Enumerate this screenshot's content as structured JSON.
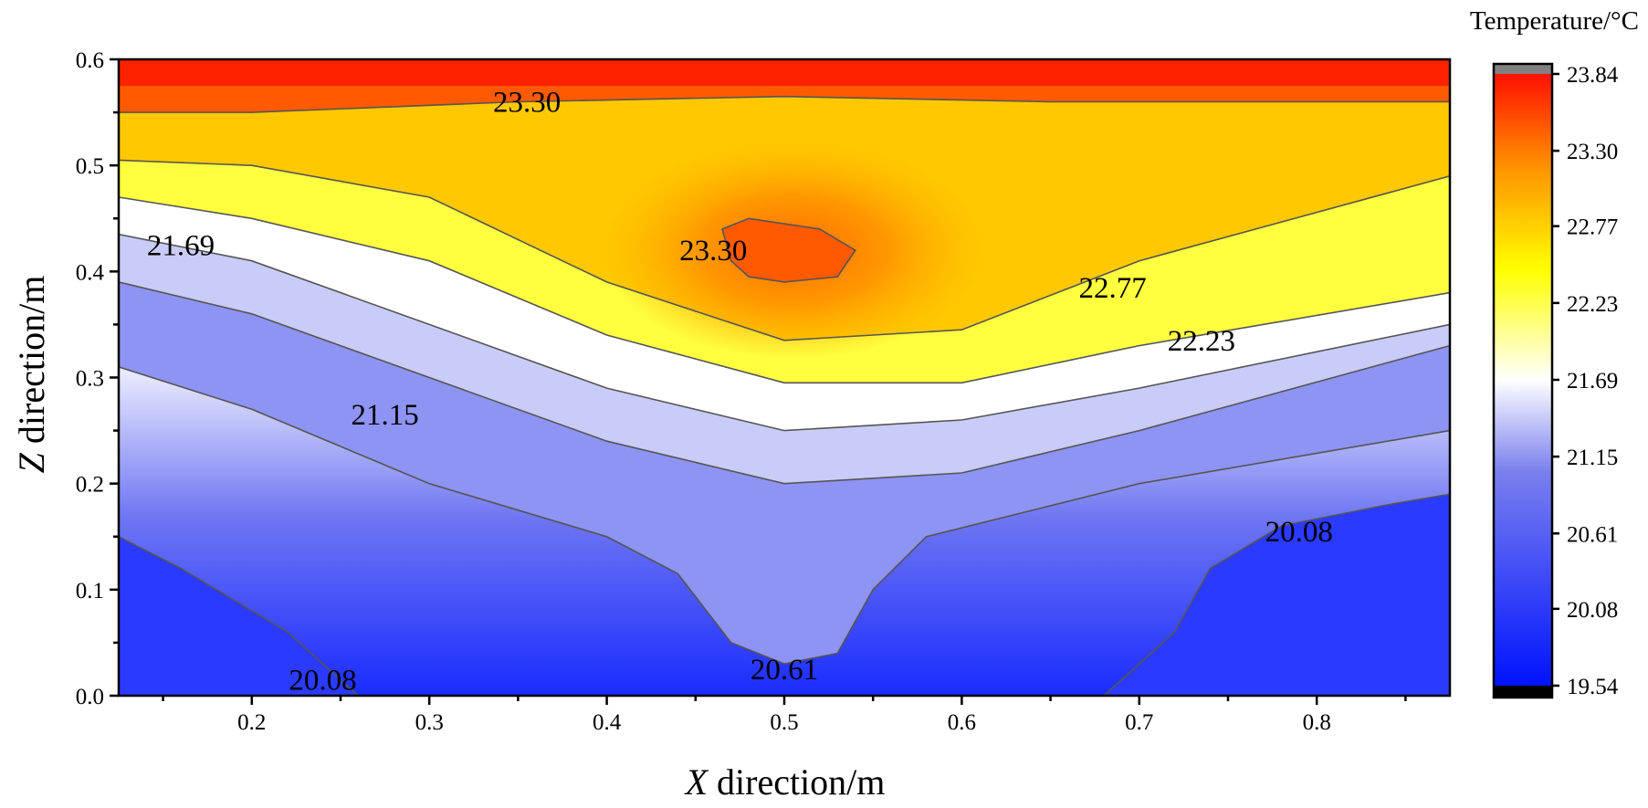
{
  "chart_data": {
    "type": "contour",
    "title": "",
    "xlabel": "X direction/m",
    "xlabel_var": "X",
    "xlabel_rest": " direction/m",
    "ylabel": "Z direction/m",
    "ylabel_var": "Z",
    "ylabel_rest": " direction/m",
    "xlim": [
      0.125,
      0.875
    ],
    "ylim": [
      0.0,
      0.6
    ],
    "xticks": [
      "0.2",
      "0.3",
      "0.4",
      "0.5",
      "0.6",
      "0.7",
      "0.8"
    ],
    "xtick_values": [
      0.2,
      0.3,
      0.4,
      0.5,
      0.6,
      0.7,
      0.8
    ],
    "yticks": [
      "0.0",
      "0.1",
      "0.2",
      "0.3",
      "0.4",
      "0.5",
      "0.6"
    ],
    "ytick_values": [
      0.0,
      0.1,
      0.2,
      0.3,
      0.4,
      0.5,
      0.6
    ],
    "colorbar": {
      "title": "Temperature/°C",
      "min": 19.54,
      "max": 23.84,
      "ticks": [
        "19.54",
        "20.08",
        "20.61",
        "21.15",
        "21.69",
        "22.23",
        "22.77",
        "23.30",
        "23.84"
      ],
      "tick_values": [
        19.54,
        20.08,
        20.61,
        21.15,
        21.69,
        22.23,
        22.77,
        23.3,
        23.84
      ],
      "colormap": [
        "#1428ff",
        "#6a72f0",
        "#ffffff",
        "#ffff00",
        "#ff2000"
      ]
    },
    "contours": [
      {
        "level": "20.08",
        "points": [
          [
            0.125,
            0.15
          ],
          [
            0.16,
            0.12
          ],
          [
            0.22,
            0.06
          ],
          [
            0.26,
            0.0
          ]
        ],
        "label_at": [
          0.24,
          0.015
        ]
      },
      {
        "level": "20.08",
        "points": [
          [
            0.68,
            0.0
          ],
          [
            0.72,
            0.06
          ],
          [
            0.74,
            0.12
          ],
          [
            0.78,
            0.16
          ],
          [
            0.84,
            0.18
          ],
          [
            0.875,
            0.19
          ]
        ],
        "label_at": [
          0.79,
          0.155
        ]
      },
      {
        "level": "20.61",
        "points": [
          [
            0.125,
            0.31
          ],
          [
            0.2,
            0.27
          ],
          [
            0.3,
            0.2
          ],
          [
            0.4,
            0.15
          ],
          [
            0.44,
            0.115
          ],
          [
            0.47,
            0.05
          ],
          [
            0.5,
            0.03
          ],
          [
            0.53,
            0.04
          ],
          [
            0.55,
            0.1
          ],
          [
            0.58,
            0.15
          ],
          [
            0.7,
            0.2
          ],
          [
            0.875,
            0.25
          ]
        ],
        "label_at": [
          0.5,
          0.025
        ]
      },
      {
        "level": "21.15",
        "points": [
          [
            0.125,
            0.39
          ],
          [
            0.2,
            0.36
          ],
          [
            0.3,
            0.3
          ],
          [
            0.4,
            0.24
          ],
          [
            0.5,
            0.2
          ],
          [
            0.6,
            0.21
          ],
          [
            0.7,
            0.25
          ],
          [
            0.875,
            0.33
          ]
        ],
        "label_at": [
          0.275,
          0.265
        ]
      },
      {
        "level": "21.69",
        "points": [
          [
            0.125,
            0.435
          ],
          [
            0.2,
            0.41
          ],
          [
            0.3,
            0.35
          ],
          [
            0.4,
            0.29
          ],
          [
            0.5,
            0.25
          ],
          [
            0.6,
            0.26
          ],
          [
            0.7,
            0.29
          ],
          [
            0.875,
            0.35
          ]
        ],
        "label_at": [
          0.16,
          0.425
        ]
      },
      {
        "level": "22.23",
        "points": [
          [
            0.125,
            0.47
          ],
          [
            0.2,
            0.45
          ],
          [
            0.3,
            0.41
          ],
          [
            0.4,
            0.34
          ],
          [
            0.5,
            0.295
          ],
          [
            0.6,
            0.295
          ],
          [
            0.7,
            0.33
          ],
          [
            0.875,
            0.38
          ]
        ],
        "label_at": [
          0.735,
          0.335
        ]
      },
      {
        "level": "22.77",
        "points": [
          [
            0.125,
            0.505
          ],
          [
            0.2,
            0.5
          ],
          [
            0.3,
            0.47
          ],
          [
            0.4,
            0.39
          ],
          [
            0.5,
            0.335
          ],
          [
            0.6,
            0.345
          ],
          [
            0.7,
            0.41
          ],
          [
            0.875,
            0.49
          ]
        ],
        "label_at": [
          0.685,
          0.385
        ]
      },
      {
        "level": "23.30",
        "points": [
          [
            0.125,
            0.55
          ],
          [
            0.2,
            0.55
          ],
          [
            0.35,
            0.56
          ],
          [
            0.5,
            0.565
          ],
          [
            0.65,
            0.56
          ],
          [
            0.875,
            0.56
          ]
        ],
        "label_at": [
          0.355,
          0.56
        ]
      },
      {
        "level": "23.30",
        "closed": true,
        "points": [
          [
            0.48,
            0.45
          ],
          [
            0.52,
            0.44
          ],
          [
            0.54,
            0.42
          ],
          [
            0.53,
            0.395
          ],
          [
            0.5,
            0.39
          ],
          [
            0.48,
            0.395
          ],
          [
            0.47,
            0.41
          ],
          [
            0.465,
            0.44
          ]
        ],
        "label_at": [
          0.46,
          0.42
        ]
      }
    ]
  }
}
